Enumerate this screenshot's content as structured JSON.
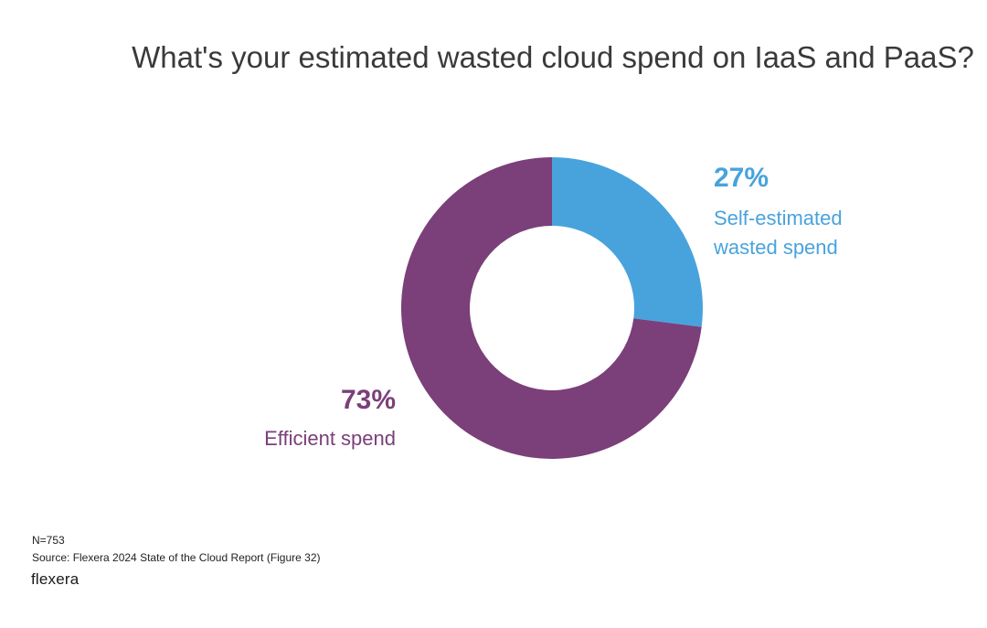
{
  "colors": {
    "wasted": "#48a3dd",
    "efficient": "#7b3f7a"
  },
  "chart_data": {
    "type": "pie",
    "variant": "donut",
    "title": "What's your estimated wasted cloud spend on IaaS and PaaS?",
    "slices": [
      {
        "name": "Self-estimated wasted spend",
        "value": 27,
        "label": "27%",
        "color": "#48a3dd"
      },
      {
        "name": "Efficient spend",
        "value": 73,
        "label": "73%",
        "color": "#7b3f7a"
      }
    ],
    "wasted": {
      "pct": "27%",
      "label_line1": "Self-estimated",
      "label_line2": "wasted spend"
    },
    "efficient": {
      "pct": "73%",
      "label": "Efficient spend"
    }
  },
  "footer": {
    "n": "N=753",
    "source": "Source: Flexera 2024 State of the Cloud Report (Figure 32)",
    "logo": "flexera"
  }
}
